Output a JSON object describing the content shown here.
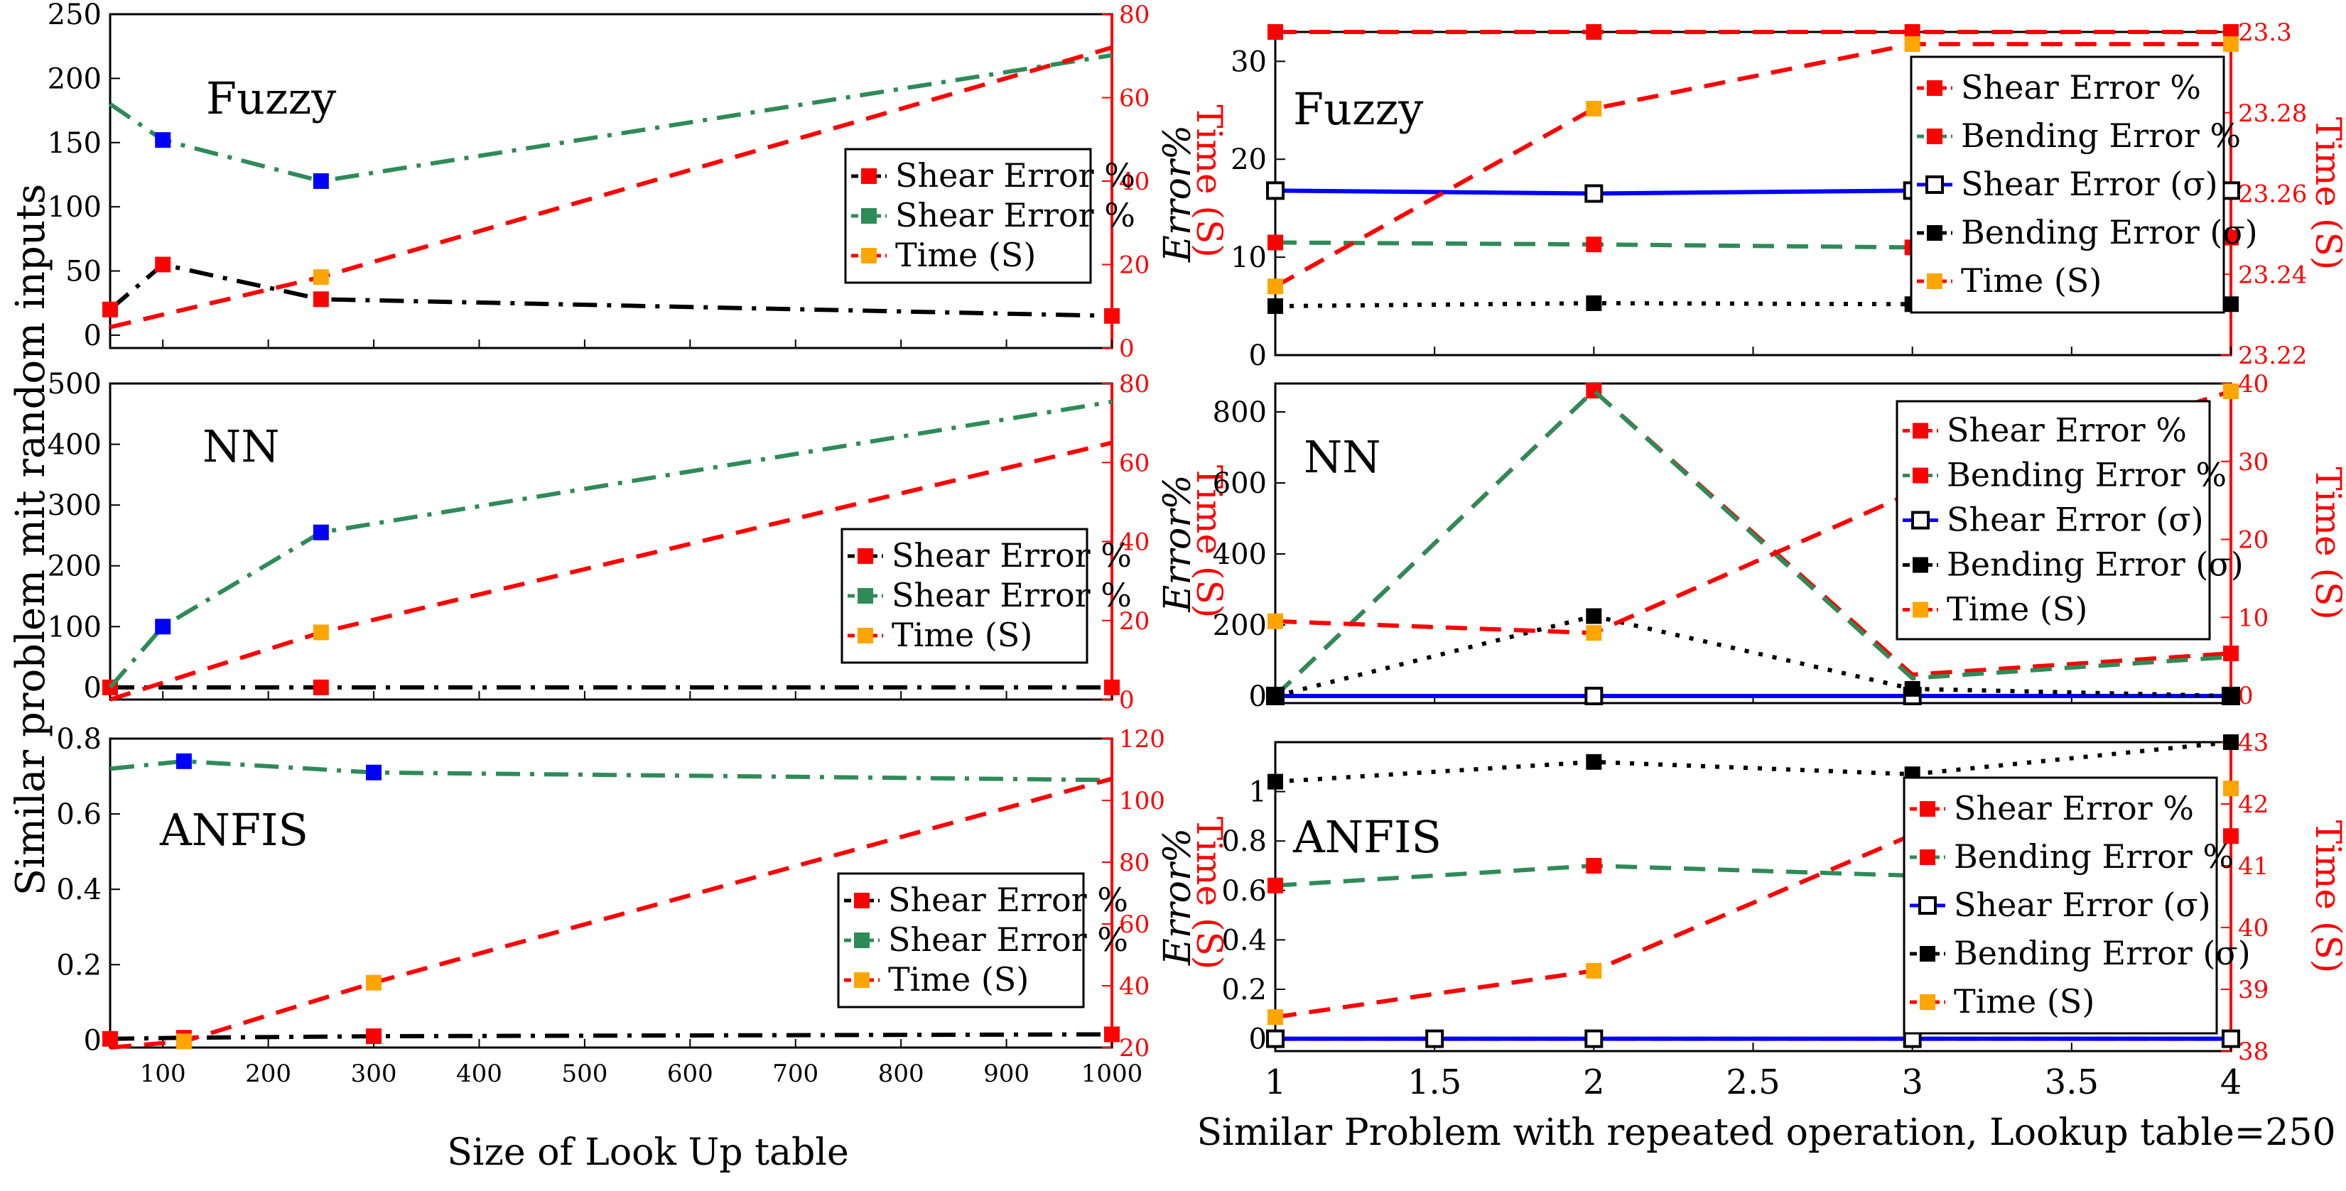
{
  "figure": {
    "left_ylabel": "Similar problem mit random inputs",
    "left_xlabel": "Size of Look Up table",
    "right_xlabel": "Similar Problem with repeated operation, Lookup table=250",
    "right_ylabel_left": "Error%",
    "right_ylabel_right": "Time (S)",
    "left_ylabel_right": "Time (S)"
  },
  "colors": {
    "red": "#ff0000",
    "green": "#2e8b57",
    "black": "#000000",
    "blue": "#0000ff",
    "orange": "#ffa500"
  },
  "chart_data": [
    {
      "id": "left-fuzzy",
      "type": "line",
      "label": "Fuzzy",
      "xlim": [
        50,
        1000
      ],
      "xticks": [],
      "ylim": [
        -10,
        250
      ],
      "yticks": [
        0,
        50,
        100,
        150,
        200,
        250
      ],
      "y2lim": [
        0,
        80
      ],
      "y2ticks": [
        0,
        20,
        40,
        60,
        80
      ],
      "series": [
        {
          "name": "Shear Error %",
          "x": [
            50,
            100,
            250,
            1000
          ],
          "values": [
            20,
            55,
            28,
            15
          ],
          "color": "#000000",
          "dash": "dashdot",
          "marker_color": "#ff0000",
          "axis": "left"
        },
        {
          "name": "Shear Error %",
          "x": [
            50,
            100,
            250,
            1000
          ],
          "values": [
            180,
            152,
            120,
            218
          ],
          "color": "#2e8b57",
          "dash": "dashdot",
          "marker_color": "#0000ff",
          "marker_idx": [
            1,
            2
          ],
          "axis": "left"
        },
        {
          "name": "Time (S)",
          "x": [
            50,
            250,
            1000
          ],
          "values": [
            5,
            17,
            72
          ],
          "color": "#ff0000",
          "dash": "dash",
          "marker_color": "#ffa500",
          "marker_idx": [
            1
          ],
          "axis": "right"
        }
      ],
      "legend": [
        "Shear Error %",
        "Shear Error %",
        "Time (S)"
      ]
    },
    {
      "id": "left-nn",
      "type": "line",
      "label": "NN",
      "xlim": [
        50,
        1000
      ],
      "xticks": [],
      "ylim": [
        -20,
        500
      ],
      "yticks": [
        0,
        100,
        200,
        300,
        400,
        500
      ],
      "y2lim": [
        0,
        80
      ],
      "y2ticks": [
        0,
        20,
        40,
        60,
        80
      ],
      "series": [
        {
          "name": "Shear Error %",
          "x": [
            50,
            250,
            1000
          ],
          "values": [
            0,
            0,
            0
          ],
          "color": "#000000",
          "dash": "dashdot",
          "marker_color": "#ff0000",
          "axis": "left"
        },
        {
          "name": "Shear Error %",
          "x": [
            50,
            100,
            250,
            1000
          ],
          "values": [
            0,
            100,
            255,
            470
          ],
          "color": "#2e8b57",
          "dash": "dashdot",
          "marker_color": "#0000ff",
          "marker_idx": [
            1,
            2
          ],
          "axis": "left"
        },
        {
          "name": "Time (S)",
          "x": [
            50,
            250,
            1000
          ],
          "values": [
            0,
            17,
            65
          ],
          "color": "#ff0000",
          "dash": "dash",
          "marker_color": "#ffa500",
          "marker_idx": [
            1
          ],
          "axis": "right"
        }
      ],
      "legend": [
        "Shear Error %",
        "Shear Error %",
        "Time (S)"
      ]
    },
    {
      "id": "left-anfis",
      "type": "line",
      "label": "ANFIS",
      "xlim": [
        50,
        1000
      ],
      "xticks": [
        100,
        200,
        300,
        400,
        500,
        600,
        700,
        800,
        900,
        1000
      ],
      "ylim": [
        -0.02,
        0.8
      ],
      "yticks": [
        0,
        0.2,
        0.4,
        0.6,
        0.8
      ],
      "y2lim": [
        20,
        120
      ],
      "y2ticks": [
        20,
        40,
        60,
        80,
        100,
        120
      ],
      "series": [
        {
          "name": "Shear Error %",
          "x": [
            50,
            120,
            300,
            1000
          ],
          "values": [
            0.003,
            0.006,
            0.01,
            0.015
          ],
          "color": "#000000",
          "dash": "dashdot",
          "marker_color": "#ff0000",
          "axis": "left"
        },
        {
          "name": "Shear Error %",
          "x": [
            50,
            120,
            300,
            1000
          ],
          "values": [
            0.72,
            0.74,
            0.71,
            0.69
          ],
          "color": "#2e8b57",
          "dash": "dashdot",
          "marker_color": "#0000ff",
          "marker_idx": [
            1,
            2
          ],
          "axis": "left"
        },
        {
          "name": "Time (S)",
          "x": [
            50,
            120,
            300,
            1000
          ],
          "values": [
            20,
            22,
            41,
            107
          ],
          "color": "#ff0000",
          "dash": "dash",
          "marker_color": "#ffa500",
          "marker_idx": [
            1,
            2
          ],
          "axis": "right"
        }
      ],
      "legend": [
        "Shear Error %",
        "Shear Error %",
        "Time (S)"
      ]
    },
    {
      "id": "right-fuzzy",
      "type": "line",
      "label": "Fuzzy",
      "xlim": [
        1,
        4
      ],
      "xticks": [],
      "ylim": [
        0,
        33
      ],
      "yticks": [
        0,
        10,
        20,
        30
      ],
      "y2lim": [
        23.22,
        23.3
      ],
      "y2ticks": [
        23.22,
        23.24,
        23.26,
        23.28,
        23.3
      ],
      "series": [
        {
          "name": "Shear Error %",
          "x": [
            1,
            2,
            3,
            4
          ],
          "values": [
            23.3,
            23.3,
            23.3,
            23.3
          ],
          "color": "#ff0000",
          "dash": "dash",
          "marker_color": "#ff0000",
          "axis": "right"
        },
        {
          "name": "Bending Error %",
          "x": [
            1,
            2,
            3,
            4
          ],
          "values": [
            11.5,
            11.3,
            11,
            12
          ],
          "color": "#2e8b57",
          "dash": "dash",
          "marker_color": "#ff0000",
          "axis": "left"
        },
        {
          "name": "Shear Error (σ)",
          "x": [
            1,
            2,
            3,
            4
          ],
          "values": [
            16.8,
            16.5,
            16.8,
            16.8
          ],
          "color": "#0000ff",
          "dash": "solid",
          "marker_color": "open",
          "axis": "left"
        },
        {
          "name": "Bending Error (σ)",
          "x": [
            1,
            2,
            3,
            4
          ],
          "values": [
            5,
            5.3,
            5.2,
            5.2
          ],
          "color": "#000000",
          "dash": "dot",
          "marker_color": "#000000",
          "axis": "left"
        },
        {
          "name": "Time (S)",
          "x": [
            1,
            2,
            3,
            4
          ],
          "values": [
            23.237,
            23.281,
            23.297,
            23.297
          ],
          "color": "#ff0000",
          "dash": "dash",
          "marker_color": "#ffa500",
          "axis": "right"
        }
      ],
      "legend": [
        "Shear Error %",
        "Bending Error %",
        "Shear Error (σ)",
        "Bending Error (σ)",
        "Time (S)"
      ]
    },
    {
      "id": "right-nn",
      "type": "line",
      "label": "NN",
      "xlim": [
        1,
        4
      ],
      "xticks": [],
      "ylim": [
        -20,
        880
      ],
      "yticks": [
        0,
        200,
        400,
        600,
        800
      ],
      "y2lim": [
        -1,
        40
      ],
      "y2ticks": [
        0,
        10,
        20,
        30,
        40
      ],
      "series": [
        {
          "name": "Shear Error %",
          "x": [
            1,
            2,
            3,
            4
          ],
          "values": [
            0,
            860,
            60,
            120
          ],
          "color": "#ff0000",
          "dash": "dash",
          "marker_color": "#ff0000",
          "marker_idx": [
            0,
            1,
            3
          ],
          "axis": "left"
        },
        {
          "name": "Bending Error %",
          "x": [
            1,
            2,
            3,
            4
          ],
          "values": [
            0,
            860,
            50,
            110
          ],
          "color": "#2e8b57",
          "dash": "dash",
          "marker_color": "#ff0000",
          "marker_idx": [],
          "axis": "left"
        },
        {
          "name": "Shear Error (σ)",
          "x": [
            1,
            2,
            3,
            4
          ],
          "values": [
            0,
            0,
            0,
            0
          ],
          "color": "#0000ff",
          "dash": "solid",
          "marker_color": "open",
          "axis": "left"
        },
        {
          "name": "Bending Error (σ)",
          "x": [
            1,
            2,
            3,
            4
          ],
          "values": [
            0,
            225,
            20,
            0
          ],
          "color": "#000000",
          "dash": "dot",
          "marker_color": "#000000",
          "axis": "left"
        },
        {
          "name": "Time (S)",
          "x": [
            1,
            2,
            3,
            4
          ],
          "values": [
            9.5,
            8,
            26,
            39
          ],
          "color": "#ff0000",
          "dash": "dash",
          "marker_color": "#ffa500",
          "axis": "right"
        }
      ],
      "legend": [
        "Shear Error %",
        "Bending Error %",
        "Shear Error (σ)",
        "Bending Error (σ)",
        "Time (S)"
      ]
    },
    {
      "id": "right-anfis",
      "type": "line",
      "label": "ANFIS",
      "xlim": [
        1,
        4
      ],
      "xticks": [
        1,
        1.5,
        2,
        2.5,
        3,
        3.5,
        4
      ],
      "ylim": [
        -0.05,
        1.2
      ],
      "yticks": [
        0,
        0.2,
        0.4,
        0.6,
        0.8,
        1
      ],
      "y2lim": [
        38,
        43
      ],
      "y2ticks": [
        38,
        39,
        40,
        41,
        42,
        43
      ],
      "series": [
        {
          "name": "Shear Error %",
          "x": [
            1,
            2,
            3,
            4
          ],
          "values": [
            38.2,
            38.2,
            38.2,
            38.2
          ],
          "color": "#ff0000",
          "dash": "dash",
          "marker_color": "#ff0000",
          "marker_idx": [],
          "axis": "right"
        },
        {
          "name": "Bending Error %",
          "x": [
            1,
            2,
            3,
            4
          ],
          "values": [
            0.62,
            0.7,
            0.66,
            0.82
          ],
          "color": "#2e8b57",
          "dash": "dash",
          "marker_color": "#ff0000",
          "axis": "left"
        },
        {
          "name": "Shear Error (σ)",
          "x": [
            1,
            1.5,
            2,
            3,
            4
          ],
          "values": [
            0,
            0,
            0,
            0,
            0
          ],
          "color": "#0000ff",
          "dash": "solid",
          "marker_color": "open",
          "axis": "left"
        },
        {
          "name": "Bending Error (σ)",
          "x": [
            1,
            2,
            3,
            4
          ],
          "values": [
            1.04,
            1.12,
            1.07,
            1.2
          ],
          "color": "#000000",
          "dash": "dot",
          "marker_color": "#000000",
          "axis": "left"
        },
        {
          "name": "Time (S)",
          "x": [
            1,
            2,
            3,
            4
          ],
          "values": [
            38.55,
            39.3,
            41.5,
            42.25
          ],
          "color": "#ff0000",
          "dash": "dash",
          "marker_color": "#ffa500",
          "axis": "right"
        }
      ],
      "legend": [
        "Shear Error %",
        "Bending Error %",
        "Shear Error (σ)",
        "Bending Error (σ)",
        "Time (S)"
      ]
    }
  ]
}
